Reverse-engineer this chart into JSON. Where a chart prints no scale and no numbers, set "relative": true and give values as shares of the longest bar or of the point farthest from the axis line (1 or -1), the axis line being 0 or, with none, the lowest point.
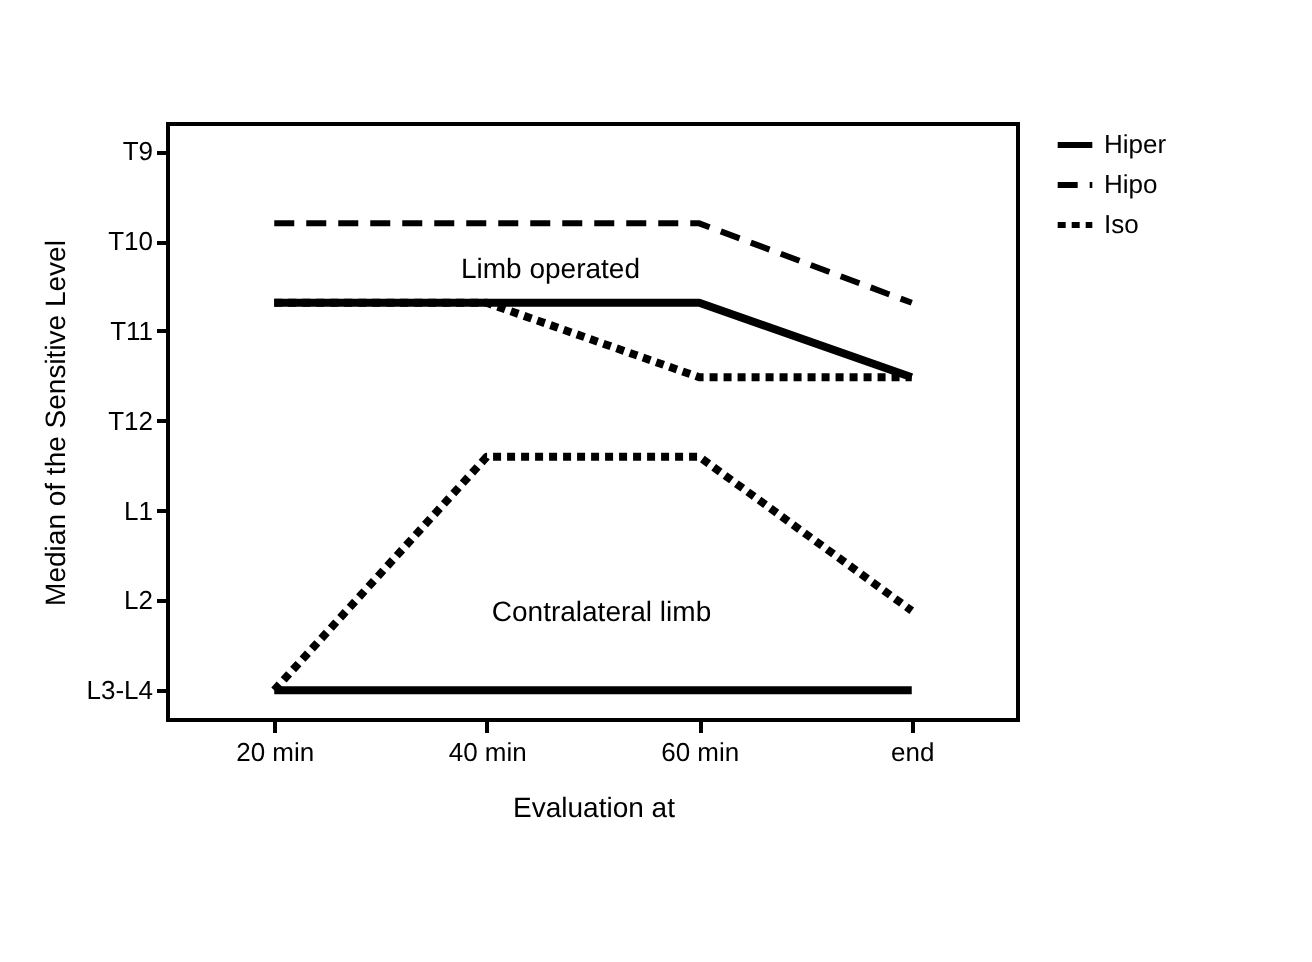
{
  "chart_data": {
    "type": "line",
    "xlabel": "Evaluation at",
    "ylabel": "Median of the Sensitive Level",
    "categories": [
      "20 min",
      "40 min",
      "60 min",
      "end"
    ],
    "y_categories": [
      "T9",
      "T10",
      "T11",
      "T12",
      "L1",
      "L2",
      "L3-L4"
    ],
    "relative": true,
    "series": [
      {
        "name": "Hiper",
        "color": "#000000",
        "line_style": "solid",
        "values": [
          0.84,
          0.84,
          0.84,
          0.69
        ]
      },
      {
        "name": "Hipo",
        "color": "#000000",
        "line_style": "dashed",
        "values": [
          1,
          1,
          1,
          0.84
        ]
      },
      {
        "name": "Iso",
        "color": "#000000",
        "line_style": "dotted",
        "values": [
          0.84,
          0.84,
          0.69,
          0.69
        ]
      },
      {
        "color": "#000000",
        "line_style": "solid",
        "values": [
          0.06,
          0.06,
          0.06,
          0.06
        ]
      },
      {
        "color": "#000000",
        "line_style": "dotted",
        "values": [
          0.06,
          0.53,
          0.53,
          0.22
        ]
      }
    ],
    "annotations": [
      "Limb operated",
      "Contralateral limb"
    ],
    "legend": "top right",
    "grid": false,
    "marker": "none"
  }
}
